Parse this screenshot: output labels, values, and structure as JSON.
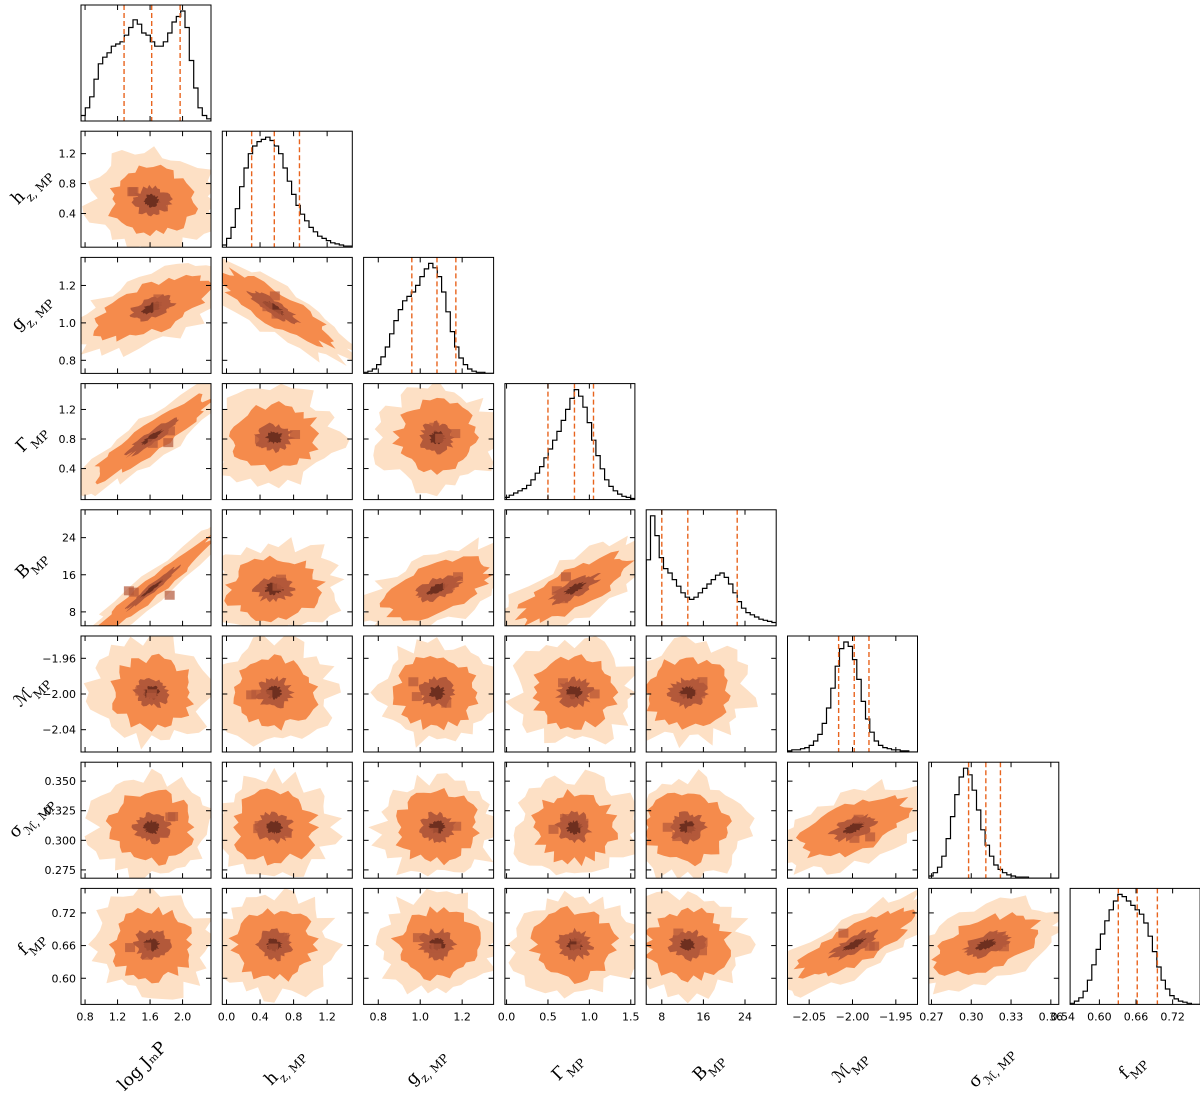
{
  "chart_data": {
    "type": "corner",
    "parameters": [
      {
        "label": "log JₘP",
        "sub": "",
        "ticks": [
          0.8,
          1.2,
          1.6,
          2.0
        ],
        "tick_labels": [
          "0.8",
          "1.2",
          "1.6",
          "2.0"
        ],
        "range": [
          0.75,
          2.35
        ],
        "median": 1.62,
        "q16": 1.28,
        "q84": 1.97
      },
      {
        "label": "h",
        "sub": "z, MP",
        "ticks": [
          0.0,
          0.4,
          0.8,
          1.2
        ],
        "tick_labels": [
          "0.0",
          "0.4",
          "0.8",
          "1.2"
        ],
        "range": [
          -0.05,
          1.5
        ],
        "median": 0.57,
        "q16": 0.3,
        "q84": 0.87
      },
      {
        "label": "g",
        "sub": "z, MP",
        "ticks": [
          0.8,
          1.0,
          1.2
        ],
        "tick_labels": [
          "0.8",
          "1.0",
          "1.2"
        ],
        "range": [
          0.73,
          1.35
        ],
        "median": 1.08,
        "q16": 0.96,
        "q84": 1.17
      },
      {
        "label": "Γ",
        "sub": "MP",
        "ticks": [
          0.0,
          0.5,
          1.0,
          1.5
        ],
        "tick_labels": [
          "0.0",
          "0.5",
          "1.0",
          "1.5"
        ],
        "range": [
          -0.02,
          1.55
        ],
        "median": 0.82,
        "q16": 0.5,
        "q84": 1.05
      },
      {
        "label": "B",
        "sub": "MP",
        "ticks": [
          8,
          16,
          24
        ],
        "tick_labels": [
          "8",
          "16",
          "24"
        ],
        "range": [
          5.0,
          30.0
        ],
        "median": 13.0,
        "q16": 8.0,
        "q84": 22.5
      },
      {
        "label": "ℳ",
        "sub": "MP",
        "ticks": [
          -2.05,
          -2.0,
          -1.95
        ],
        "tick_labels": [
          "−2.05",
          "−2.00",
          "−1.95"
        ],
        "range": [
          -2.075,
          -1.925
        ],
        "median": -1.998,
        "q16": -2.016,
        "q84": -1.981
      },
      {
        "label": "σ",
        "sub": "ℳ, MP",
        "ticks": [
          0.27,
          0.3,
          0.33,
          0.36
        ],
        "tick_labels": [
          "0.27",
          "0.30",
          "0.33",
          "0.36"
        ],
        "range": [
          0.268,
          0.366
        ],
        "median": 0.311,
        "q16": 0.298,
        "q84": 0.322
      },
      {
        "label": "f",
        "sub": "MP",
        "ticks": [
          0.54,
          0.6,
          0.66,
          0.72
        ],
        "tick_labels": [
          "0.54",
          "0.60",
          "0.66",
          "0.72"
        ],
        "range": [
          0.552,
          0.765
        ],
        "median": 0.662,
        "q16": 0.631,
        "q84": 0.695
      }
    ],
    "row_ticks": {
      "1": {
        "ticks": [
          0.4,
          0.8,
          1.2
        ],
        "tick_labels": [
          "0.4",
          "0.8",
          "1.2"
        ],
        "range": [
          -0.05,
          1.5
        ]
      },
      "2": {
        "ticks": [
          0.8,
          1.0,
          1.2
        ],
        "tick_labels": [
          "0.8",
          "1.0",
          "1.2"
        ],
        "range": [
          0.73,
          1.35
        ]
      },
      "3": {
        "ticks": [
          0.4,
          0.8,
          1.2
        ],
        "tick_labels": [
          "0.4",
          "0.8",
          "1.2"
        ],
        "range": [
          -0.02,
          1.55
        ]
      },
      "4": {
        "ticks": [
          8,
          16,
          24
        ],
        "tick_labels": [
          "8",
          "16",
          "24"
        ],
        "range": [
          5.0,
          30.0
        ]
      },
      "5": {
        "ticks": [
          -1.96,
          -2.0,
          -2.04
        ],
        "tick_labels": [
          "−1.96",
          "−2.00",
          "−2.04"
        ],
        "range": [
          -2.065,
          -1.935
        ]
      },
      "6": {
        "ticks": [
          0.275,
          0.3,
          0.325,
          0.35
        ],
        "tick_labels": [
          "0.275",
          "0.300",
          "0.325",
          "0.350"
        ],
        "range": [
          0.268,
          0.366
        ]
      },
      "7": {
        "ticks": [
          0.6,
          0.66,
          0.72
        ],
        "tick_labels": [
          "0.60",
          "0.66",
          "0.72"
        ],
        "range": [
          0.552,
          0.765
        ]
      }
    },
    "histogram_shapes": [
      [
        0.05,
        0.12,
        0.22,
        0.38,
        0.52,
        0.58,
        0.62,
        0.68,
        0.7,
        0.72,
        0.78,
        0.85,
        0.92,
        0.88,
        0.8,
        0.78,
        0.72,
        0.68,
        0.68,
        0.72,
        0.8,
        0.9,
        0.95,
        1.0,
        0.85,
        0.55,
        0.3,
        0.12,
        0.05,
        0.02
      ],
      [
        0.02,
        0.08,
        0.18,
        0.35,
        0.55,
        0.72,
        0.85,
        0.92,
        0.96,
        0.98,
        1.0,
        0.97,
        0.92,
        0.85,
        0.72,
        0.6,
        0.48,
        0.38,
        0.3,
        0.24,
        0.18,
        0.14,
        0.1,
        0.08,
        0.06,
        0.04,
        0.03,
        0.02,
        0.01,
        0.01
      ],
      [
        0.01,
        0.02,
        0.04,
        0.08,
        0.15,
        0.24,
        0.36,
        0.48,
        0.58,
        0.66,
        0.7,
        0.74,
        0.8,
        0.88,
        0.95,
        1.0,
        0.96,
        0.88,
        0.74,
        0.56,
        0.38,
        0.24,
        0.14,
        0.08,
        0.04,
        0.02,
        0.01,
        0.01,
        0.0,
        0.0
      ],
      [
        0.02,
        0.04,
        0.06,
        0.08,
        0.1,
        0.13,
        0.18,
        0.24,
        0.3,
        0.38,
        0.46,
        0.54,
        0.62,
        0.72,
        0.82,
        0.92,
        1.0,
        0.94,
        0.84,
        0.7,
        0.54,
        0.4,
        0.28,
        0.18,
        0.12,
        0.08,
        0.05,
        0.03,
        0.02,
        0.01
      ],
      [
        0.6,
        1.0,
        0.82,
        0.62,
        0.52,
        0.48,
        0.42,
        0.36,
        0.3,
        0.26,
        0.24,
        0.26,
        0.3,
        0.34,
        0.38,
        0.42,
        0.46,
        0.48,
        0.44,
        0.38,
        0.3,
        0.22,
        0.16,
        0.12,
        0.1,
        0.08,
        0.06,
        0.05,
        0.04,
        0.03
      ],
      [
        0.01,
        0.02,
        0.02,
        0.03,
        0.04,
        0.06,
        0.1,
        0.16,
        0.26,
        0.4,
        0.58,
        0.78,
        0.94,
        1.0,
        0.96,
        0.84,
        0.66,
        0.46,
        0.3,
        0.18,
        0.1,
        0.06,
        0.04,
        0.03,
        0.02,
        0.02,
        0.01,
        0.01,
        0.0,
        0.0
      ],
      [
        0.02,
        0.05,
        0.1,
        0.2,
        0.36,
        0.56,
        0.76,
        0.92,
        1.0,
        0.94,
        0.8,
        0.62,
        0.44,
        0.3,
        0.2,
        0.12,
        0.08,
        0.05,
        0.03,
        0.02,
        0.01,
        0.01,
        0.01,
        0.0,
        0.0,
        0.0,
        0.0,
        0.0,
        0.0,
        0.0
      ],
      [
        0.01,
        0.03,
        0.06,
        0.12,
        0.22,
        0.36,
        0.5,
        0.64,
        0.76,
        0.86,
        0.94,
        1.0,
        0.98,
        0.94,
        0.9,
        0.86,
        0.82,
        0.74,
        0.62,
        0.48,
        0.34,
        0.22,
        0.14,
        0.08,
        0.05,
        0.03,
        0.02,
        0.01,
        0.0,
        0.0
      ]
    ],
    "correlations": {
      "1_0": -0.05,
      "2_0": 0.45,
      "2_1": -0.7,
      "3_0": 0.8,
      "3_1": 0.1,
      "3_2": 0.0,
      "4_0": 0.97,
      "4_1": 0.15,
      "4_2": 0.45,
      "4_3": 0.6,
      "5_0": 0.0,
      "5_1": 0.0,
      "5_2": 0.0,
      "5_3": 0.0,
      "5_4": 0.05,
      "6_0": 0.0,
      "6_1": 0.0,
      "6_2": 0.0,
      "6_3": 0.0,
      "6_4": 0.0,
      "6_5": 0.45,
      "7_0": 0.0,
      "7_1": 0.0,
      "7_2": 0.0,
      "7_3": 0.0,
      "7_4": 0.0,
      "7_5": 0.6,
      "7_6": 0.4
    },
    "contour_colors": [
      "#fde0c5",
      "#f58b4c",
      "#b3593a",
      "#6e2f1f"
    ],
    "line_color": "#e8641e",
    "hist_color": "#000000"
  }
}
